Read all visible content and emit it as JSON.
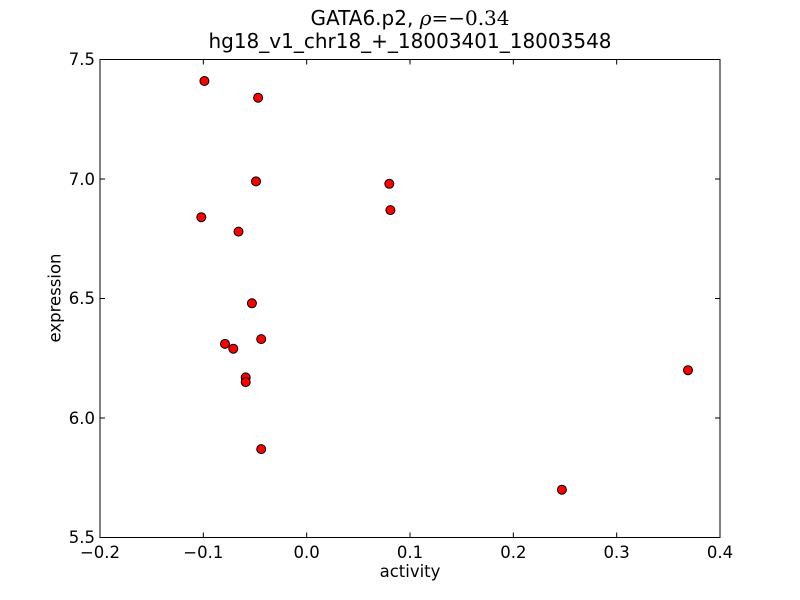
{
  "figure": {
    "title_prefix": "GATA6.p2, ",
    "title_rho": "ρ",
    "title_suffix": "=−0.34",
    "subtitle": "hg18_v1_chr18_+_18003401_18003548"
  },
  "chart_data": {
    "type": "scatter",
    "title": "GATA6.p2, ρ=−0.34",
    "subtitle": "hg18_v1_chr18_+_18003401_18003548",
    "xlabel": "activity",
    "ylabel": "expression",
    "xlim": [
      -0.2,
      0.4
    ],
    "ylim": [
      5.5,
      7.5
    ],
    "xtick_values": [
      -0.2,
      -0.1,
      0.0,
      0.1,
      0.2,
      0.3,
      0.4
    ],
    "xtick_labels": [
      "−0.2",
      "−0.1",
      "0.0",
      "0.1",
      "0.2",
      "0.3",
      "0.4"
    ],
    "ytick_values": [
      5.5,
      6.0,
      6.5,
      7.0,
      7.5
    ],
    "ytick_labels": [
      "5.5",
      "6.0",
      "6.5",
      "7.0",
      "7.5"
    ],
    "grid": false,
    "legend": null,
    "marker": {
      "shape": "circle",
      "fill_color": "#ff0000",
      "edge_color": "#000000",
      "radius_px": 4.5
    },
    "axis_color": "#000000",
    "points": [
      {
        "x": -0.099,
        "y": 7.41
      },
      {
        "x": -0.047,
        "y": 7.34
      },
      {
        "x": -0.049,
        "y": 6.99
      },
      {
        "x": 0.08,
        "y": 6.98
      },
      {
        "x": 0.081,
        "y": 6.87
      },
      {
        "x": -0.102,
        "y": 6.84
      },
      {
        "x": -0.066,
        "y": 6.78
      },
      {
        "x": -0.053,
        "y": 6.48
      },
      {
        "x": -0.044,
        "y": 6.33
      },
      {
        "x": -0.079,
        "y": 6.31
      },
      {
        "x": -0.071,
        "y": 6.29
      },
      {
        "x": -0.059,
        "y": 6.17
      },
      {
        "x": -0.059,
        "y": 6.15
      },
      {
        "x": -0.044,
        "y": 5.87
      },
      {
        "x": 0.369,
        "y": 6.2
      },
      {
        "x": 0.247,
        "y": 5.7
      }
    ]
  }
}
